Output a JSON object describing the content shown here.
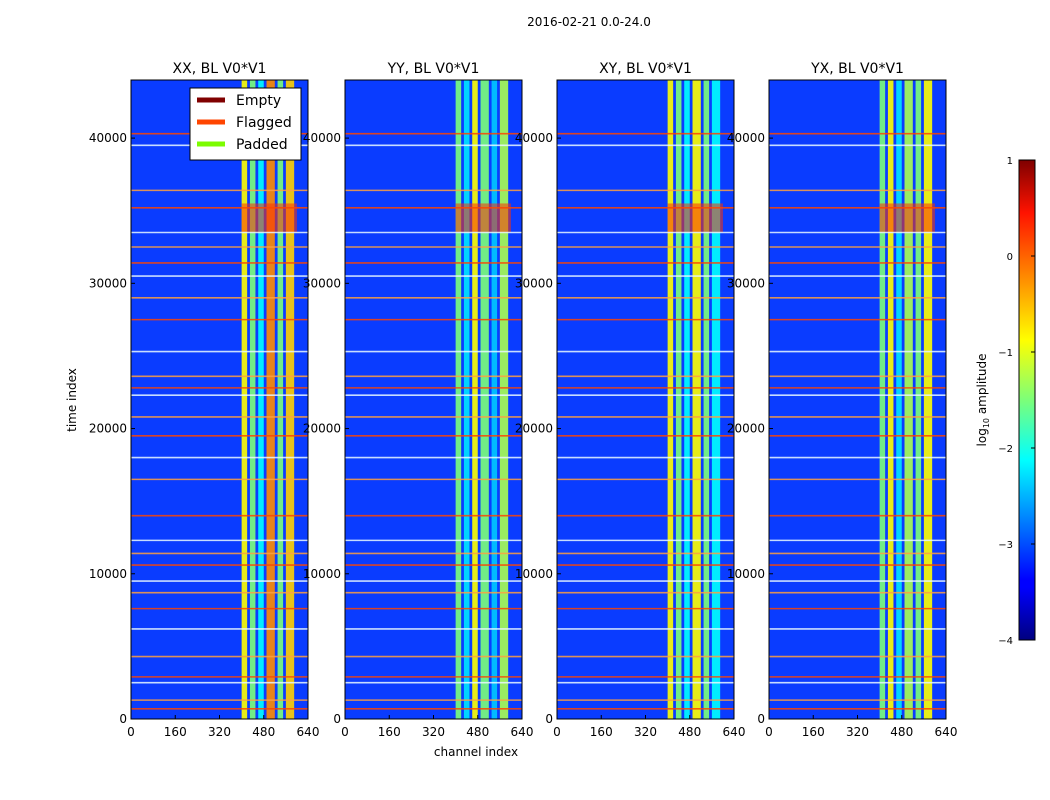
{
  "suptitle": "2016-02-21 0.0-24.0",
  "chart_data": {
    "type": "heatmap",
    "xlabel": "channel index",
    "ylabel": "time index",
    "xlim": [
      0,
      640
    ],
    "ylim": [
      0,
      44000
    ],
    "xticks": [
      0,
      160,
      320,
      480,
      640
    ],
    "yticks": [
      0,
      10000,
      20000,
      30000,
      40000
    ],
    "panels": [
      {
        "title": "XX, BL V0*V1"
      },
      {
        "title": "YY, BL V0*V1"
      },
      {
        "title": "XY, BL V0*V1"
      },
      {
        "title": "YX, BL V0*V1"
      }
    ],
    "colorbar": {
      "label_prefix": "log",
      "label_sub": "10",
      "label_suffix": " amplitude",
      "range": [
        -4,
        1
      ],
      "ticks": [
        1,
        0,
        -1,
        -2,
        -3,
        -4
      ],
      "tick_labels": [
        "1",
        "0",
        "−1",
        "−2",
        "−3",
        "−4"
      ],
      "colormap": "jet"
    },
    "legend": {
      "location": "upper-right of first panel",
      "entries": [
        {
          "label": "Empty",
          "color": "#800000"
        },
        {
          "label": "Flagged",
          "color": "#ff4500"
        },
        {
          "label": "Padded",
          "color": "#7cfc00"
        }
      ]
    },
    "bright_channel_band": [
      400,
      600
    ],
    "flagged_time_rows": [
      700,
      1300,
      2500,
      2900,
      4300,
      6200,
      7600,
      8700,
      9500,
      10600,
      11400,
      12300,
      14000,
      16500,
      18000,
      19500,
      20800,
      22300,
      22800,
      23600,
      25300,
      27500,
      29000,
      30500,
      31400,
      32500,
      33500,
      35200,
      36400,
      39500,
      40300
    ]
  }
}
